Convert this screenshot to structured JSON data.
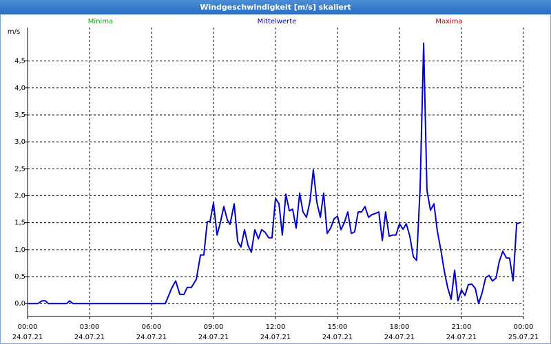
{
  "chart_data": {
    "type": "line",
    "title": "Windgeschwindigkeit [m/s] skaliert",
    "y_label": "m/s",
    "legend": [
      {
        "label": "Minima",
        "color": "#00b000"
      },
      {
        "label": "Mittelwerte",
        "color": "#0000c8"
      },
      {
        "label": "Maxima",
        "color": "#c00000"
      }
    ],
    "xlim": [
      0,
      24
    ],
    "xticks": [
      {
        "value": 0,
        "label": "00:00",
        "date": "24.07.21"
      },
      {
        "value": 3,
        "label": "03:00",
        "date": "24.07.21"
      },
      {
        "value": 6,
        "label": "06:00",
        "date": "24.07.21"
      },
      {
        "value": 9,
        "label": "09:00",
        "date": "24.07.21"
      },
      {
        "value": 12,
        "label": "12:00",
        "date": "24.07.21"
      },
      {
        "value": 15,
        "label": "15:00",
        "date": "24.07.21"
      },
      {
        "value": 18,
        "label": "18:00",
        "date": "24.07.21"
      },
      {
        "value": 21,
        "label": "21:00",
        "date": "24.07.21"
      },
      {
        "value": 24,
        "label": "00:00",
        "date": "25.07.21"
      }
    ],
    "ylim": [
      -0.24,
      5.12
    ],
    "yticks": [
      {
        "value": 0,
        "label": "0,0"
      },
      {
        "value": 0.5,
        "label": "0,5"
      },
      {
        "value": 1,
        "label": "1,0"
      },
      {
        "value": 1.5,
        "label": "1,5"
      },
      {
        "value": 2,
        "label": "2,0"
      },
      {
        "value": 2.5,
        "label": "2,5"
      },
      {
        "value": 3,
        "label": "3,0"
      },
      {
        "value": 3.5,
        "label": "3,5"
      },
      {
        "value": 4,
        "label": "4,0"
      },
      {
        "value": 4.5,
        "label": "4,5"
      }
    ],
    "grid": true,
    "x": [
      0,
      0.5,
      0.7,
      0.87,
      1.0,
      1.9,
      2.03,
      2.2,
      6.67,
      6.97,
      7.17,
      7.37,
      7.57,
      7.73,
      7.93,
      8.17,
      8.37,
      8.53,
      8.7,
      8.83,
      9.0,
      9.17,
      9.33,
      9.5,
      9.67,
      9.8,
      10.0,
      10.17,
      10.33,
      10.5,
      10.67,
      10.83,
      11.0,
      11.17,
      11.33,
      11.5,
      11.67,
      11.83,
      12.0,
      12.17,
      12.33,
      12.5,
      12.67,
      12.83,
      13.0,
      13.17,
      13.33,
      13.5,
      13.67,
      13.83,
      14.0,
      14.17,
      14.33,
      14.5,
      14.67,
      14.83,
      15.0,
      15.17,
      15.33,
      15.5,
      15.67,
      15.83,
      16.0,
      16.17,
      16.33,
      16.5,
      16.67,
      16.83,
      17.0,
      17.17,
      17.33,
      17.5,
      17.67,
      17.83,
      18.0,
      18.17,
      18.33,
      18.5,
      18.67,
      18.83,
      19.0,
      19.17,
      19.33,
      19.5,
      19.67,
      19.83,
      20.0,
      20.17,
      20.33,
      20.5,
      20.67,
      20.83,
      21.0,
      21.17,
      21.33,
      21.5,
      21.67,
      21.83,
      22.0,
      22.17,
      22.33,
      22.5,
      22.67,
      22.83,
      23.0,
      23.17,
      23.33,
      23.5,
      23.67,
      23.83
    ],
    "series": [
      {
        "name": "Mittelwerte",
        "color": "#0000c8",
        "values": [
          0,
          0,
          0.05,
          0.05,
          0,
          0,
          0.05,
          0,
          0,
          0.28,
          0.42,
          0.17,
          0.17,
          0.3,
          0.3,
          0.45,
          0.9,
          0.9,
          1.52,
          1.52,
          1.87,
          1.27,
          1.5,
          1.8,
          1.55,
          1.47,
          1.85,
          1.15,
          1.05,
          1.37,
          1.08,
          0.95,
          1.37,
          1.2,
          1.37,
          1.32,
          1.22,
          1.22,
          1.95,
          1.85,
          1.27,
          2.03,
          1.72,
          1.75,
          1.4,
          2.05,
          1.7,
          1.6,
          1.9,
          2.48,
          1.88,
          1.6,
          2.05,
          1.3,
          1.4,
          1.57,
          1.62,
          1.37,
          1.5,
          1.7,
          1.3,
          1.33,
          1.7,
          1.7,
          1.8,
          1.6,
          1.65,
          1.67,
          1.7,
          1.17,
          1.7,
          1.25,
          1.27,
          1.27,
          1.48,
          1.38,
          1.48,
          1.25,
          0.87,
          0.8,
          2.15,
          4.83,
          2.1,
          1.73,
          1.85,
          1.35,
          1.0,
          0.6,
          0.3,
          0.08,
          0.62,
          0.05,
          0.25,
          0.15,
          0.35,
          0.36,
          0.28,
          0.0,
          0.2,
          0.48,
          0.52,
          0.42,
          0.47,
          0.78,
          0.97,
          0.85,
          0.84,
          0.42,
          1.48,
          1.5
        ]
      }
    ]
  }
}
